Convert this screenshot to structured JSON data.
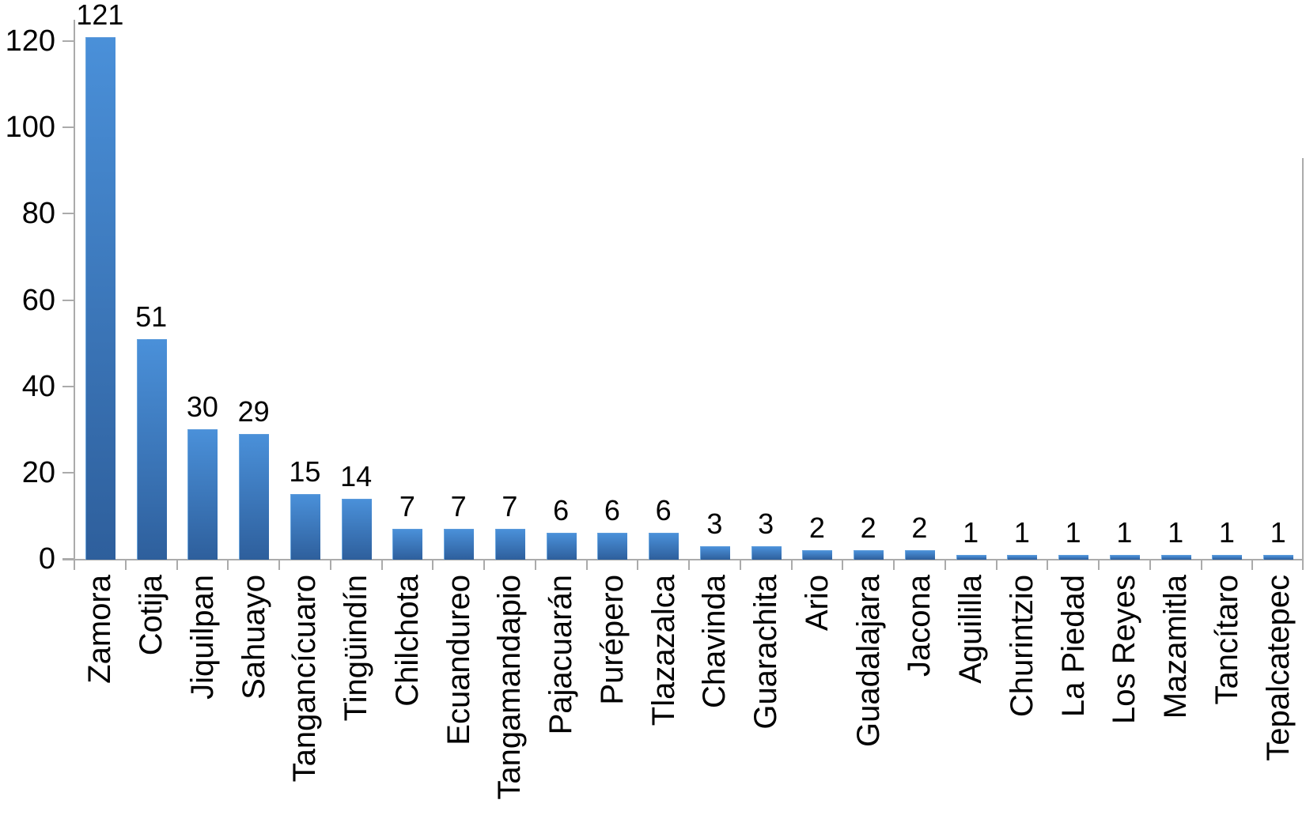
{
  "chart_data": {
    "type": "bar",
    "categories": [
      "Zamora",
      "Cotija",
      "Jiquilpan",
      "Sahuayo",
      "Tangancícuaro",
      "Tingüindín",
      "Chilchota",
      "Ecuandureo",
      "Tangamandapio",
      "Pajacuarán",
      "Purépero",
      "Tlazazalca",
      "Chavinda",
      "Guarachita",
      "Ario",
      "Guadalajara",
      "Jacona",
      "Aguililla",
      "Churintzio",
      "La Piedad",
      "Los Reyes",
      "Mazamitla",
      "Tancítaro",
      "Tepalcatepec"
    ],
    "values": [
      121,
      51,
      30,
      29,
      15,
      14,
      7,
      7,
      7,
      6,
      6,
      6,
      3,
      3,
      2,
      2,
      2,
      1,
      1,
      1,
      1,
      1,
      1,
      1
    ],
    "value_labels": [
      "121",
      "51",
      "30",
      "29",
      "15",
      "14",
      "7",
      "7",
      "7",
      "6",
      "6",
      "6",
      "3",
      "3",
      "2",
      "2",
      "2",
      "1",
      "1",
      "1",
      "1",
      "1",
      "1",
      "1"
    ],
    "yticks": [
      0,
      20,
      40,
      60,
      80,
      100,
      120
    ],
    "ylim": [
      0,
      125
    ],
    "grid": false,
    "legend": null,
    "bar_color_top": "#4a90d9",
    "bar_color_bottom": "#2e5f9c",
    "axis_color": "#ababab",
    "text_color": "#000000",
    "background_color": "#ffffff"
  }
}
